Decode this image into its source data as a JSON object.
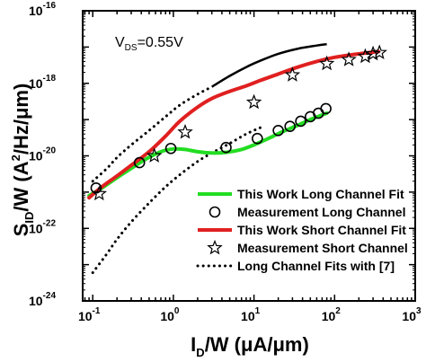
{
  "chart_data": {
    "type": "line",
    "title": "",
    "annotation": {
      "main": "V",
      "sub": "DS",
      "value": "=0.55V"
    },
    "xlabel": {
      "pre": "I",
      "sub": "D",
      "post": "/W (μA/μm)"
    },
    "ylabel": {
      "pre": "S",
      "sub": "ID",
      "mid": "/W (A",
      "sup": "2",
      "post": "/Hz/μm)"
    },
    "x_scale": "log",
    "y_scale": "log",
    "xlim": [
      0.075,
      1000
    ],
    "ylim": [
      1e-24,
      1e-16
    ],
    "x_ticks": [
      {
        "base": "10",
        "exp": "-1"
      },
      {
        "base": "10",
        "exp": "0"
      },
      {
        "base": "10",
        "exp": "1"
      },
      {
        "base": "10",
        "exp": "2"
      },
      {
        "base": "10",
        "exp": "3"
      }
    ],
    "y_ticks": [
      {
        "base": "10",
        "exp": "-24"
      },
      {
        "base": "10",
        "exp": "-22"
      },
      {
        "base": "10",
        "exp": "-20"
      },
      {
        "base": "10",
        "exp": "-18"
      },
      {
        "base": "10",
        "exp": "-16"
      }
    ],
    "grid": false,
    "legend_position": "bottom-right",
    "series": [
      {
        "name": "This Work Long Channel Fit",
        "kind": "line",
        "color": "#22dd22",
        "x": [
          0.09,
          0.13,
          0.2,
          0.3,
          0.45,
          0.7,
          1.0,
          1.4,
          2.0,
          3.0,
          4.5,
          7.0,
          10,
          15,
          22,
          35,
          50,
          80
        ],
        "y": [
          8e-22,
          1.3e-21,
          2.5e-21,
          4.5e-21,
          8e-21,
          1.3e-20,
          1.55e-20,
          1.5e-20,
          1.3e-20,
          1.2e-20,
          1.25e-20,
          1.5e-20,
          2e-20,
          3e-20,
          4.5e-20,
          7e-20,
          1e-19,
          1.5e-19
        ]
      },
      {
        "name": "Measurement Long Channel",
        "kind": "marker",
        "marker": "circle",
        "color": "#000000",
        "x": [
          0.11,
          0.38,
          0.93,
          4.5,
          11,
          20,
          28,
          38,
          50,
          63,
          78
        ],
        "y": [
          1.3e-21,
          6.5e-21,
          1.6e-20,
          1.7e-20,
          3e-20,
          5e-20,
          6.5e-20,
          9e-20,
          1.2e-19,
          1.5e-19,
          2e-19
        ]
      },
      {
        "name": "This Work Short Channel Fit",
        "kind": "line",
        "color": "#e02020",
        "x": [
          0.09,
          0.13,
          0.2,
          0.3,
          0.5,
          0.8,
          1.2,
          2.0,
          3.0,
          5.0,
          8.0,
          12,
          20,
          35,
          60,
          100,
          200,
          350
        ],
        "y": [
          7e-22,
          1.4e-21,
          2.8e-21,
          5.5e-21,
          1.3e-20,
          3.5e-20,
          9e-20,
          2.2e-19,
          3.8e-19,
          6e-19,
          8.5e-19,
          1.2e-18,
          1.8e-18,
          2.8e-18,
          4e-18,
          5.2e-18,
          6.5e-18,
          7.5e-18
        ]
      },
      {
        "name": "Measurement Short Channel",
        "kind": "marker",
        "marker": "star",
        "color": "#000000",
        "x": [
          0.12,
          0.58,
          1.4,
          10,
          30,
          80,
          150,
          240,
          300,
          360
        ],
        "y": [
          9e-22,
          1e-20,
          4.5e-20,
          3e-19,
          1.7e-18,
          3.5e-18,
          4.5e-18,
          5.5e-18,
          6.5e-18,
          7e-18
        ]
      },
      {
        "name": "Long Channel Fits with [7]",
        "kind": "dotted",
        "color": "#000000",
        "x": [
          0.1,
          0.15,
          0.2,
          0.3,
          0.5,
          0.8,
          1.2,
          2.0,
          3.0,
          5.0,
          8.0,
          12
        ],
        "y": [
          6e-24,
          2e-23,
          5e-23,
          1.5e-22,
          5e-22,
          1.4e-21,
          3e-21,
          7e-21,
          1.2e-20,
          2.2e-20,
          4e-20,
          6e-20
        ]
      },
      {
        "name": "",
        "kind": "dotted-continued",
        "color": "#000000",
        "x": [
          0.1,
          0.15,
          0.2,
          0.3,
          0.5,
          0.8,
          1.2,
          2.0,
          3.0,
          5.0,
          8.0,
          12,
          20,
          35,
          60,
          80
        ],
        "y": [
          2e-21,
          4.5e-21,
          9e-21,
          2e-20,
          5e-20,
          1.2e-19,
          2.5e-19,
          5e-19,
          8e-19,
          1.6e-18,
          2.8e-18,
          4.2e-18,
          6.5e-18,
          9e-18,
          1.1e-17,
          1.2e-17
        ]
      }
    ],
    "legend_entries": [
      {
        "label": "This Work Long Channel Fit",
        "symbol": "line",
        "color": "#22dd22"
      },
      {
        "label": "Measurement Long Channel",
        "symbol": "circle",
        "color": "#000000"
      },
      {
        "label": "This Work Short Channel Fit",
        "symbol": "line",
        "color": "#e02020"
      },
      {
        "label": "Measurement Short Channel",
        "symbol": "star",
        "color": "#000000"
      },
      {
        "label": "Long Channel Fits with [7]",
        "symbol": "dotted",
        "color": "#000000"
      }
    ]
  }
}
